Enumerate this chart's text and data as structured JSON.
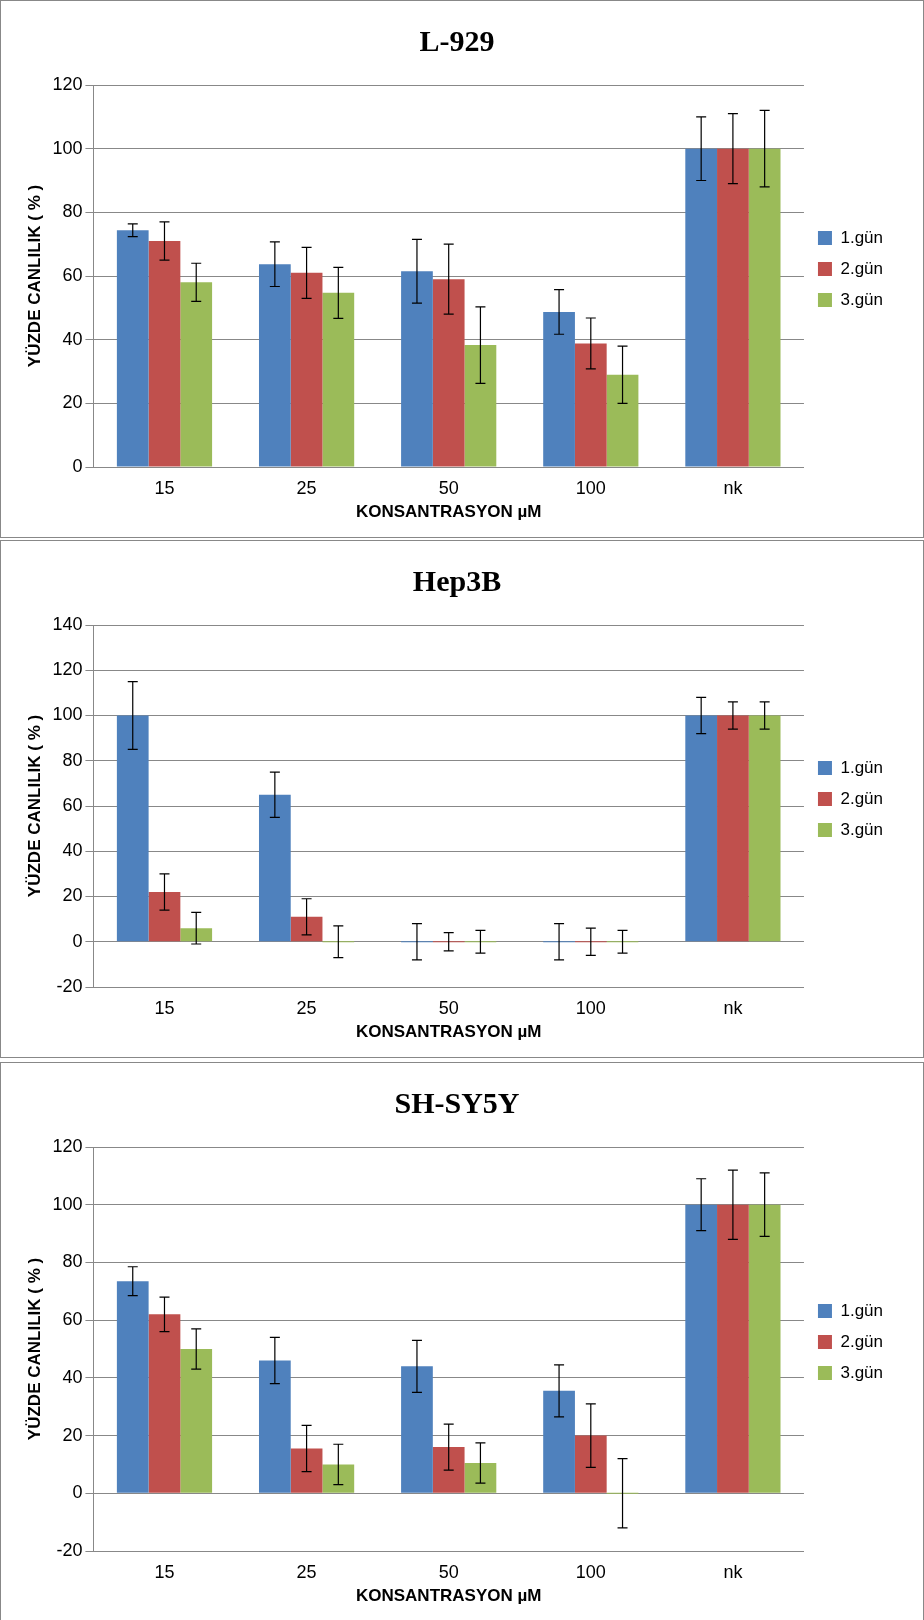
{
  "chart_data": [
    {
      "type": "bar",
      "title": "L-929",
      "xlabel": "KONSANTRASYON µM",
      "ylabel": "YÜZDE CANLILIK ( % )",
      "categories": [
        "15",
        "25",
        "50",
        "100",
        "nk"
      ],
      "series": [
        {
          "name": "1.gün",
          "color": "#4f81bd",
          "values": [
            74.4,
            63.7,
            61.5,
            48.7,
            100
          ],
          "errors": [
            2,
            7,
            10,
            7,
            10
          ]
        },
        {
          "name": "2.gün",
          "color": "#c0504d",
          "values": [
            71,
            61,
            59,
            38.8,
            100
          ],
          "errors": [
            6,
            8,
            11,
            8,
            11
          ]
        },
        {
          "name": "3.gün",
          "color": "#9bbb59",
          "values": [
            58,
            54.7,
            38.3,
            29,
            100
          ],
          "errors": [
            6,
            8,
            12,
            9,
            12
          ]
        }
      ],
      "ylim": [
        0,
        120
      ],
      "yticks": [
        0,
        20,
        40,
        60,
        80,
        100,
        120
      ],
      "grid": "y",
      "legend": "right"
    },
    {
      "type": "bar",
      "title": "Hep3B",
      "xlabel": "KONSANTRASYON µM",
      "ylabel": "YÜZDE CANLILIK ( % )",
      "categories": [
        "15",
        "25",
        "50",
        "100",
        "nk"
      ],
      "series": [
        {
          "name": "1.gün",
          "color": "#4f81bd",
          "values": [
            100,
            65,
            0,
            0,
            100
          ],
          "errors": [
            15,
            10,
            8,
            8,
            8
          ]
        },
        {
          "name": "2.gün",
          "color": "#c0504d",
          "values": [
            22,
            11,
            0,
            0,
            100
          ],
          "errors": [
            8,
            8,
            4,
            6,
            6
          ]
        },
        {
          "name": "3.gün",
          "color": "#9bbb59",
          "values": [
            6,
            0,
            0,
            0,
            100
          ],
          "errors": [
            7,
            7,
            5,
            5,
            6
          ]
        }
      ],
      "ylim": [
        -20,
        140
      ],
      "yticks": [
        -20,
        0,
        20,
        40,
        60,
        80,
        100,
        120,
        140
      ],
      "grid": "y",
      "legend": "right"
    },
    {
      "type": "bar",
      "title": "SH-SY5Y",
      "xlabel": "KONSANTRASYON µM",
      "ylabel": "YÜZDE CANLILIK ( % )",
      "categories": [
        "15",
        "25",
        "50",
        "100",
        "nk"
      ],
      "series": [
        {
          "name": "1.gün",
          "color": "#4f81bd",
          "values": [
            73.5,
            46,
            44,
            35.5,
            100
          ],
          "errors": [
            5,
            8,
            9,
            9,
            9
          ]
        },
        {
          "name": "2.gün",
          "color": "#c0504d",
          "values": [
            62,
            15.5,
            16,
            20,
            100
          ],
          "errors": [
            6,
            8,
            8,
            11,
            12
          ]
        },
        {
          "name": "3.gün",
          "color": "#9bbb59",
          "values": [
            50,
            10,
            10.5,
            0,
            100
          ],
          "errors": [
            7,
            7,
            7,
            12,
            11
          ]
        }
      ],
      "ylim": [
        -20,
        120
      ],
      "yticks": [
        -20,
        0,
        20,
        40,
        60,
        80,
        100,
        120
      ],
      "grid": "y",
      "legend": "right"
    }
  ]
}
